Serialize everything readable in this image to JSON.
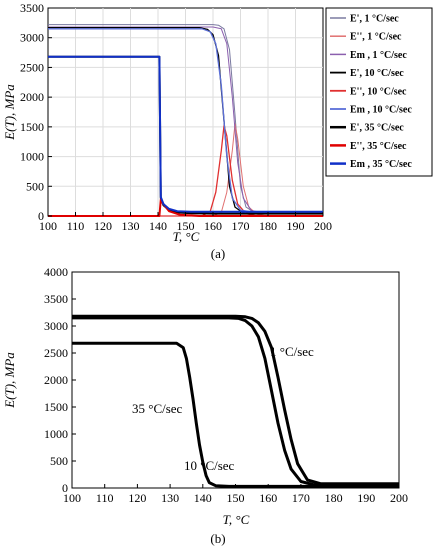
{
  "chart_data": [
    {
      "type": "line",
      "panel_label": "(a)",
      "xlabel": "T, °C",
      "ylabel": "E(T), MPa",
      "xlim": [
        100,
        200
      ],
      "ylim": [
        0,
        3500
      ],
      "xticks": [
        100,
        110,
        120,
        130,
        140,
        150,
        160,
        170,
        180,
        190,
        200
      ],
      "yticks": [
        0,
        500,
        1000,
        1500,
        2000,
        2500,
        3000,
        3500
      ],
      "grid": true,
      "legend_position": "right, outside",
      "series": [
        {
          "name": "E', 1 °C/sec",
          "color": "#7a7aa0",
          "width": 1,
          "x": [
            100,
            160,
            162,
            164,
            166,
            168,
            170,
            172,
            175,
            180,
            200
          ],
          "y": [
            3220,
            3220,
            3210,
            3150,
            2800,
            1700,
            500,
            150,
            60,
            40,
            40
          ]
        },
        {
          "name": "E'', 1 °C/sec",
          "color": "#e07070",
          "width": 1,
          "x": [
            100,
            160,
            163,
            165,
            167,
            168,
            169,
            171,
            173,
            176,
            180,
            200
          ],
          "y": [
            0,
            0,
            60,
            400,
            1100,
            1550,
            1300,
            500,
            150,
            30,
            0,
            0
          ]
        },
        {
          "name": "Em , 1 °C/sec",
          "color": "#8b5fae",
          "width": 1,
          "x": [
            100,
            160,
            163,
            165,
            167,
            169,
            171,
            174,
            178,
            200
          ],
          "y": [
            3180,
            3180,
            3150,
            2900,
            2000,
            900,
            300,
            90,
            60,
            60
          ]
        },
        {
          "name": "E', 10 °C/sec",
          "color": "#000000",
          "width": 1.3,
          "x": [
            100,
            155,
            158,
            160,
            162,
            164,
            166,
            168,
            171,
            176,
            200
          ],
          "y": [
            3170,
            3170,
            3140,
            3050,
            2700,
            1600,
            500,
            150,
            50,
            40,
            40
          ]
        },
        {
          "name": "E'', 10 °C/sec",
          "color": "#e03030",
          "width": 1.3,
          "x": [
            100,
            156,
            159,
            161,
            163,
            164,
            165,
            167,
            169,
            172,
            176,
            200
          ],
          "y": [
            0,
            0,
            80,
            400,
            1100,
            1520,
            1350,
            600,
            200,
            40,
            0,
            0
          ]
        },
        {
          "name": "Em , 10 °C/sec",
          "color": "#5b6fd8",
          "width": 1.3,
          "x": [
            100,
            156,
            159,
            161,
            163,
            165,
            167,
            170,
            175,
            200
          ],
          "y": [
            3150,
            3150,
            3100,
            2900,
            2200,
            1000,
            300,
            100,
            60,
            60
          ]
        },
        {
          "name": "E', 35 °C/sec",
          "color": "#000000",
          "width": 2,
          "x": [
            100,
            140.5,
            141,
            142,
            144,
            147,
            152,
            160,
            200
          ],
          "y": [
            2680,
            2680,
            300,
            180,
            100,
            60,
            45,
            40,
            40
          ]
        },
        {
          "name": "E'', 35 °C/sec",
          "color": "#e00000",
          "width": 2,
          "x": [
            100,
            140.5,
            141,
            142,
            144,
            148,
            155,
            200
          ],
          "y": [
            0,
            0,
            280,
            200,
            80,
            20,
            0,
            0
          ]
        },
        {
          "name": "Em , 35 °C/sec",
          "color": "#1030c8",
          "width": 2,
          "x": [
            100,
            140.5,
            141,
            142,
            144,
            147,
            152,
            160,
            200
          ],
          "y": [
            2680,
            2680,
            320,
            200,
            120,
            80,
            70,
            70,
            70
          ]
        }
      ]
    },
    {
      "type": "line",
      "panel_label": "(b)",
      "xlabel": "T, °C",
      "ylabel": "E(T), MPa",
      "xlim": [
        100,
        200
      ],
      "ylim": [
        0,
        4000
      ],
      "xticks": [
        100,
        110,
        120,
        130,
        140,
        150,
        160,
        170,
        180,
        190,
        200
      ],
      "yticks": [
        0,
        500,
        1000,
        1500,
        2000,
        2500,
        3000,
        3500,
        4000
      ],
      "grid": false,
      "annotations": [
        "1 °C/sec",
        "10 °C/sec",
        "35 °C/sec"
      ],
      "series": [
        {
          "name": "1 °C/sec",
          "color": "#000000",
          "width": 3,
          "x": [
            100,
            150,
            153,
            155,
            157,
            159,
            161,
            163,
            165,
            167,
            169,
            172,
            176,
            200
          ],
          "y": [
            3180,
            3180,
            3170,
            3140,
            3060,
            2900,
            2600,
            2050,
            1450,
            900,
            450,
            150,
            80,
            80
          ]
        },
        {
          "name": "10 °C/sec",
          "color": "#000000",
          "width": 3,
          "x": [
            100,
            148,
            151,
            153,
            155,
            157,
            159,
            161,
            163,
            165,
            167,
            170,
            174,
            200
          ],
          "y": [
            3150,
            3150,
            3140,
            3100,
            3000,
            2800,
            2400,
            1800,
            1200,
            700,
            350,
            120,
            60,
            60
          ]
        },
        {
          "name": "35 °C/sec",
          "color": "#000000",
          "width": 3,
          "x": [
            100,
            132,
            134,
            135,
            136,
            137,
            138,
            139,
            140,
            141,
            142,
            144,
            148,
            200
          ],
          "y": [
            2680,
            2680,
            2600,
            2400,
            2050,
            1650,
            1200,
            800,
            480,
            230,
            100,
            40,
            30,
            30
          ]
        }
      ]
    }
  ]
}
